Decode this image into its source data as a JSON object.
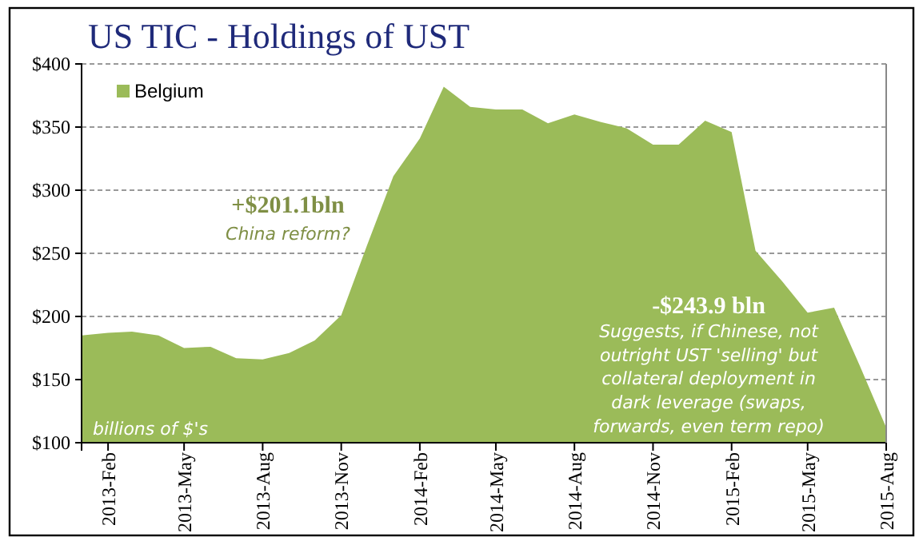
{
  "chart_data": {
    "type": "area",
    "title": "US TIC - Holdings of UST",
    "x": [
      "2013-01",
      "2013-02",
      "2013-03",
      "2013-04",
      "2013-05",
      "2013-06",
      "2013-07",
      "2013-08",
      "2013-09",
      "2013-10",
      "2013-11",
      "2013-12",
      "2014-01",
      "2014-02",
      "2014-03",
      "2014-04",
      "2014-05",
      "2014-06",
      "2014-07",
      "2014-08",
      "2014-09",
      "2014-10",
      "2014-11",
      "2014-12",
      "2015-01",
      "2015-02",
      "2015-03",
      "2015-04",
      "2015-05",
      "2015-06",
      "2015-07",
      "2015-08"
    ],
    "series": [
      {
        "name": "Belgium",
        "color": "#9bbb59",
        "values": [
          185,
          187,
          188,
          185,
          175,
          176,
          167,
          166,
          171,
          181,
          201,
          256,
          311,
          341,
          382,
          366,
          364,
          364,
          353,
          360,
          354,
          349,
          336,
          336,
          355,
          346,
          252,
          228,
          203,
          207,
          161,
          112
        ]
      }
    ],
    "xlim": [
      "2013-01",
      "2015-08"
    ],
    "xticks": [
      {
        "value": "2013-02",
        "label": "2013-Feb"
      },
      {
        "value": "2013-05",
        "label": "2013-May"
      },
      {
        "value": "2013-08",
        "label": "2013-Aug"
      },
      {
        "value": "2013-11",
        "label": "2013-Nov"
      },
      {
        "value": "2014-02",
        "label": "2014-Feb"
      },
      {
        "value": "2014-05",
        "label": "2014-May"
      },
      {
        "value": "2014-08",
        "label": "2014-Aug"
      },
      {
        "value": "2014-11",
        "label": "2014-Nov"
      },
      {
        "value": "2015-02",
        "label": "2015-Feb"
      },
      {
        "value": "2015-05",
        "label": "2015-May"
      },
      {
        "value": "2015-08",
        "label": "2015-Aug"
      }
    ],
    "ylim": [
      100,
      400
    ],
    "yticks": [
      {
        "value": 100,
        "label": "$100"
      },
      {
        "value": 150,
        "label": "$150"
      },
      {
        "value": 200,
        "label": "$200"
      },
      {
        "value": 250,
        "label": "$250"
      },
      {
        "value": 300,
        "label": "$300"
      },
      {
        "value": 350,
        "label": "$350"
      },
      {
        "value": 400,
        "label": "$400"
      }
    ],
    "grid": "y",
    "legend": "top left",
    "annotations": [
      "+$201.1bln",
      "China reform?",
      "-$243.9 bln",
      "Suggests, if Chinese, not\noutright  UST 'selling' but\ncollateral deployment in\ndark leverage (swaps,\nforwards,  even term repo)",
      "billions of $'s"
    ]
  }
}
